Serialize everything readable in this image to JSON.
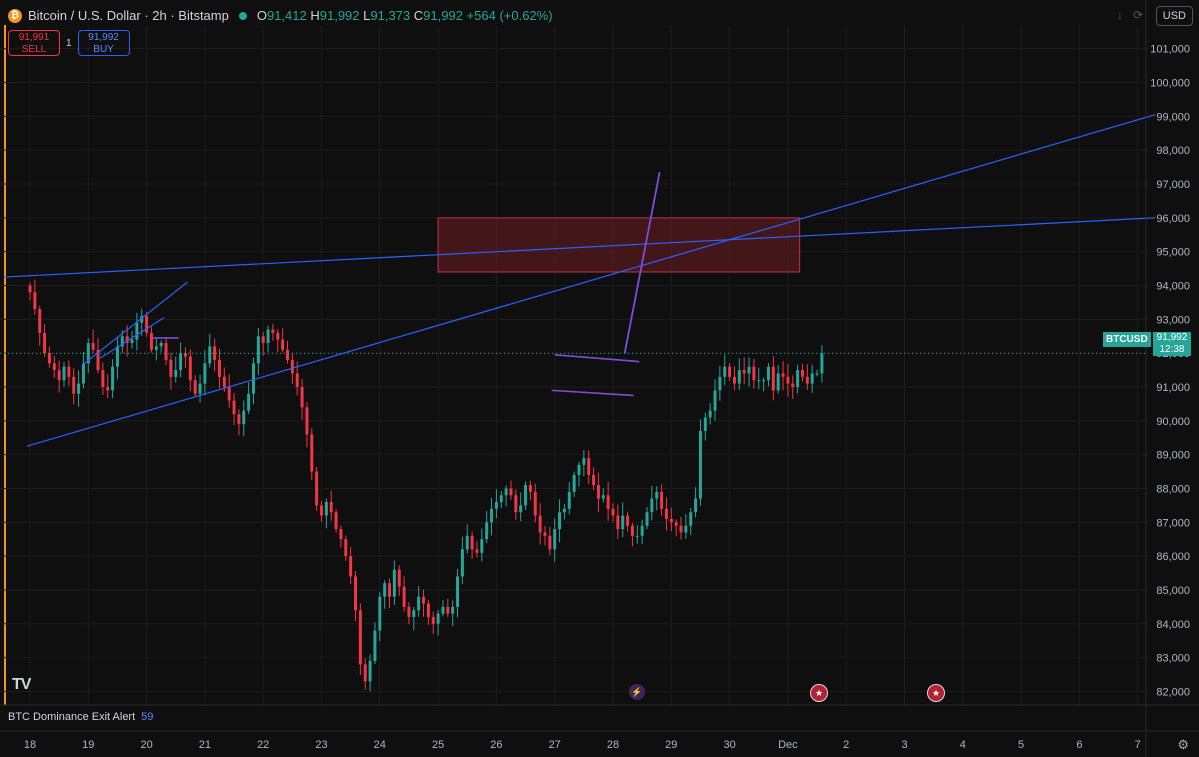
{
  "header": {
    "symbol_title": "Bitcoin / U.S. Dollar · 2h · Bitstamp",
    "o_label": "O",
    "o_value": "91,412",
    "h_label": "H",
    "h_value": "91,992",
    "l_label": "L",
    "l_value": "91,373",
    "c_label": "C",
    "c_value": "91,992",
    "change": "+564 (+0.62%)"
  },
  "trade": {
    "sell_price": "91,991",
    "sell_label": "SELL",
    "spread": "1",
    "buy_price": "91,992",
    "buy_label": "BUY"
  },
  "currency": "USD",
  "price_tag": {
    "symbol": "BTCUSD",
    "price": "91,992",
    "countdown": "12:38"
  },
  "indicator": {
    "name": "BTC Dominance Exit Alert",
    "value": "59"
  },
  "colors": {
    "up": "#26a69a",
    "down": "#f23645",
    "trendline": "#2962ff",
    "channel": "#7b4fd6",
    "zone_fill": "#5a1a20",
    "zone_stroke": "#a03040"
  },
  "chart_data": {
    "type": "candlestick",
    "title": "Bitcoin / U.S. Dollar · 2h · Bitstamp",
    "ylim": [
      81600,
      101700
    ],
    "y_ticks": [
      82000,
      83000,
      84000,
      85000,
      86000,
      87000,
      88000,
      89000,
      90000,
      91000,
      92000,
      93000,
      94000,
      95000,
      96000,
      97000,
      98000,
      99000,
      100000,
      101000
    ],
    "y_tick_labels": [
      "82,000",
      "83,000",
      "84,000",
      "85,000",
      "86,000",
      "87,000",
      "88,000",
      "89,000",
      "90,000",
      "91,000",
      "92,000",
      "93,000",
      "94,000",
      "95,000",
      "96,000",
      "97,000",
      "98,000",
      "99,000",
      "100,000",
      "101,000"
    ],
    "x_tick_labels": [
      "18",
      "19",
      "20",
      "21",
      "22",
      "23",
      "24",
      "25",
      "26",
      "27",
      "28",
      "29",
      "30",
      "Dec",
      "2",
      "3",
      "4",
      "5",
      "6",
      "7"
    ],
    "x_tick_days": [
      0,
      1,
      2,
      3,
      4,
      5,
      6,
      7,
      8,
      9,
      10,
      11,
      12,
      13,
      14,
      15,
      16,
      17,
      18,
      19
    ],
    "last_price": 91992,
    "closes": [
      93800,
      93300,
      92600,
      92000,
      91700,
      91500,
      91200,
      91600,
      91300,
      90800,
      91100,
      91700,
      92300,
      92100,
      91500,
      91000,
      90900,
      91600,
      92200,
      92500,
      92300,
      92400,
      92900,
      93100,
      92600,
      92100,
      92200,
      92300,
      91800,
      91300,
      91500,
      92000,
      91900,
      91200,
      90800,
      91100,
      91700,
      92200,
      91800,
      91300,
      91000,
      90600,
      90200,
      89900,
      90300,
      90800,
      91700,
      92500,
      92300,
      92700,
      92600,
      92400,
      92100,
      91800,
      91400,
      91000,
      90400,
      89600,
      88500,
      87500,
      87200,
      87600,
      87300,
      86800,
      86500,
      86000,
      85400,
      84400,
      82800,
      82300,
      82900,
      83800,
      84800,
      85200,
      84800,
      85600,
      85100,
      84500,
      84200,
      84400,
      84800,
      84600,
      84200,
      84000,
      84300,
      84500,
      84300,
      84500,
      85400,
      86200,
      86600,
      86200,
      86100,
      86500,
      87000,
      87400,
      87600,
      87800,
      88000,
      87800,
      87300,
      87500,
      88100,
      87900,
      87200,
      86700,
      86600,
      86200,
      86800,
      87300,
      87400,
      87900,
      88400,
      88700,
      88900,
      88400,
      88100,
      87700,
      87800,
      87400,
      87200,
      86800,
      87200,
      86900,
      86600,
      86600,
      86900,
      87300,
      87700,
      87900,
      87400,
      87100,
      87000,
      86900,
      86700,
      86900,
      87300,
      87700,
      89700,
      90100,
      90300,
      90900,
      91300,
      91600,
      91300,
      91100,
      91500,
      91400,
      91600,
      91200,
      91200,
      91200,
      91600,
      90900,
      91400,
      91300,
      91100,
      91000,
      91500,
      91300,
      91100,
      91400,
      91400,
      91992
    ],
    "annotations": {
      "supply_zone": {
        "x_from_day": 7.0,
        "x_to_day": 13.2,
        "y_from": 94400,
        "y_to": 96000
      },
      "trendlines": [
        {
          "x1_day": -0.45,
          "y1": 94250,
          "x2_day": 19.3,
          "y2": 96000
        },
        {
          "x1_day": -0.05,
          "y1": 89250,
          "x2_day": 19.3,
          "y2": 99050
        },
        {
          "x1_day": 0.9,
          "y1": 91650,
          "x2_day": 2.7,
          "y2": 94100
        },
        {
          "x1_day": 1.2,
          "y1": 91850,
          "x2_day": 2.3,
          "y2": 93050
        }
      ],
      "channel": [
        {
          "x1_day": 9.0,
          "y1": 91950,
          "x2_day": 10.45,
          "y2": 91750
        },
        {
          "x1_day": 8.95,
          "y1": 90900,
          "x2_day": 10.35,
          "y2": 90750
        },
        {
          "x1_day": 2.1,
          "y1": 92450,
          "x2_day": 2.55,
          "y2": 92450
        }
      ],
      "projection": [
        {
          "x1_day": 10.2,
          "y1": 91992,
          "x2_day": 10.8,
          "y2": 97350
        }
      ]
    }
  }
}
